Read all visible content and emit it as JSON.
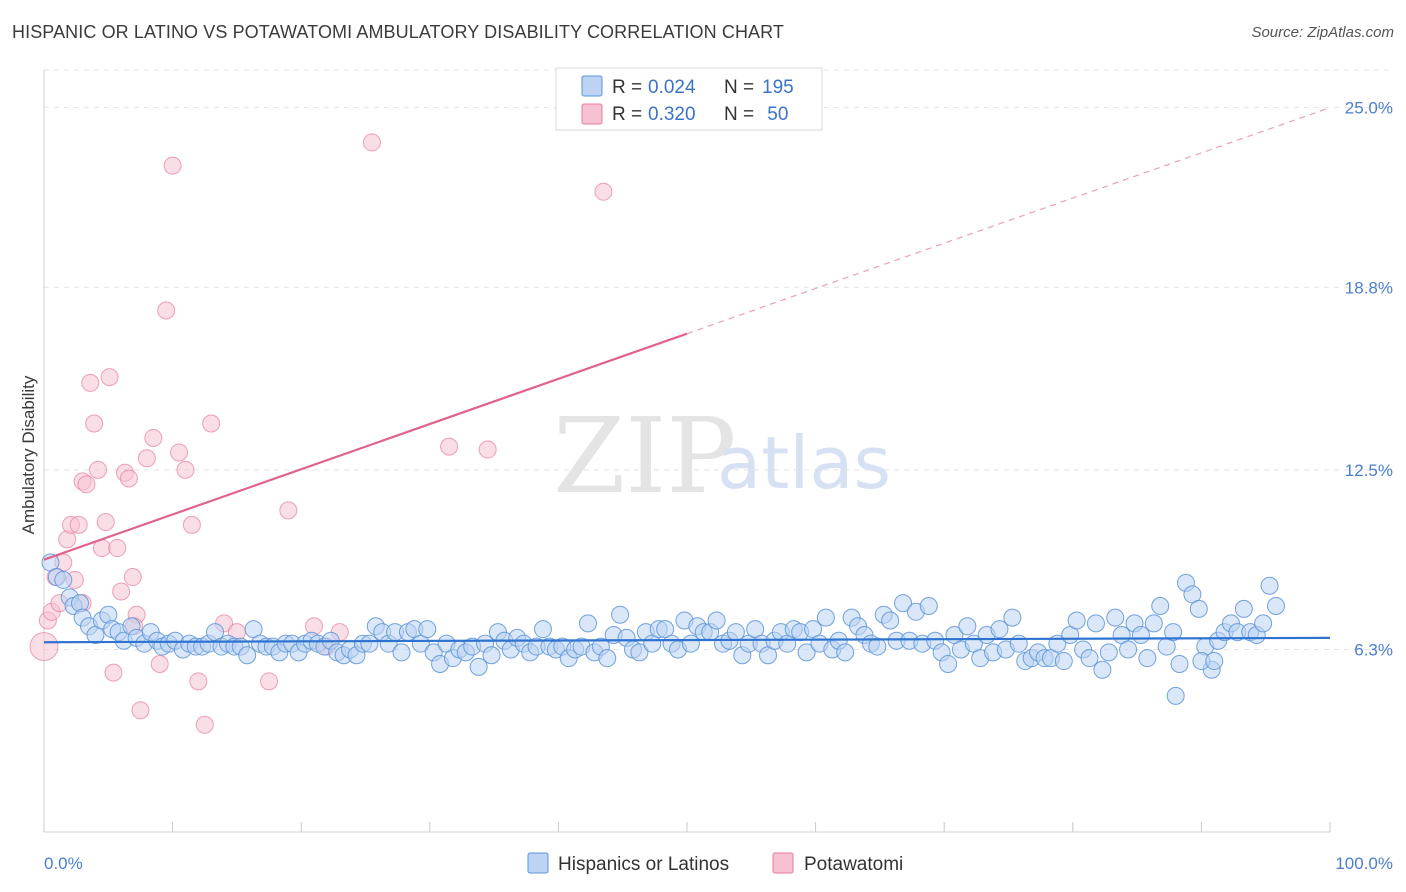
{
  "title": "HISPANIC OR LATINO VS POTAWATOMI AMBULATORY DISABILITY CORRELATION CHART",
  "source": "Source: ZipAtlas.com",
  "watermark": {
    "part1": "ZIP",
    "part2": "atlas"
  },
  "colors": {
    "blue": "#5b93db",
    "blue_fill": "#bcd3f3",
    "pink": "#e77ba0",
    "pink_fill": "#f6c2d2",
    "accent_text": "#3b73c8"
  },
  "legend": {
    "rows": [
      {
        "r_label": "R = ",
        "r_value": "0.024",
        "n_label": "N = ",
        "n_value": "195"
      },
      {
        "r_label": "R = ",
        "r_value": "0.320",
        "n_label": "N = ",
        "n_value": " 50"
      }
    ]
  },
  "bottom_legend": {
    "series1": "Hispanics or Latinos",
    "series2": "Potawatomi"
  },
  "chart_data": {
    "type": "scatter",
    "title": "HISPANIC OR LATINO VS POTAWATOMI AMBULATORY DISABILITY CORRELATION CHART",
    "xlabel": "",
    "ylabel": "Ambulatory Disability",
    "xlim": [
      0,
      100
    ],
    "ylim": [
      0,
      26.3
    ],
    "x_tick_labels": {
      "left": "0.0%",
      "right": "100.0%"
    },
    "y_ticks": [
      {
        "value": 6.3,
        "label": "6.3%"
      },
      {
        "value": 12.5,
        "label": "12.5%"
      },
      {
        "value": 18.8,
        "label": "18.8%"
      },
      {
        "value": 25.0,
        "label": "25.0%"
      }
    ],
    "series": [
      {
        "name": "Hispanics or Latinos",
        "R": 0.024,
        "N": 195,
        "trend": {
          "x0": 0,
          "y0": 6.55,
          "x1": 100,
          "y1": 6.7
        },
        "points": [
          [
            0.5,
            9.3
          ],
          [
            1,
            8.8
          ],
          [
            1.5,
            8.7
          ],
          [
            2,
            8.1
          ],
          [
            2.3,
            7.8
          ],
          [
            2.8,
            7.9
          ],
          [
            3,
            7.4
          ],
          [
            3.5,
            7.1
          ],
          [
            4,
            6.8
          ],
          [
            4.5,
            7.3
          ],
          [
            5,
            7.5
          ],
          [
            5.3,
            7.0
          ],
          [
            5.8,
            6.9
          ],
          [
            6.2,
            6.6
          ],
          [
            6.8,
            7.1
          ],
          [
            7.2,
            6.7
          ],
          [
            7.8,
            6.5
          ],
          [
            8.3,
            6.9
          ],
          [
            8.8,
            6.6
          ],
          [
            9.2,
            6.4
          ],
          [
            9.7,
            6.5
          ],
          [
            10.2,
            6.6
          ],
          [
            10.8,
            6.3
          ],
          [
            11.3,
            6.5
          ],
          [
            11.8,
            6.4
          ],
          [
            12.3,
            6.4
          ],
          [
            12.8,
            6.5
          ],
          [
            13.3,
            6.9
          ],
          [
            13.8,
            6.4
          ],
          [
            14.3,
            6.5
          ],
          [
            14.8,
            6.4
          ],
          [
            15.3,
            6.4
          ],
          [
            15.8,
            6.1
          ],
          [
            16.3,
            7.0
          ],
          [
            16.8,
            6.5
          ],
          [
            17.3,
            6.4
          ],
          [
            17.8,
            6.4
          ],
          [
            18.3,
            6.2
          ],
          [
            18.8,
            6.5
          ],
          [
            19.3,
            6.5
          ],
          [
            19.8,
            6.2
          ],
          [
            20.3,
            6.5
          ],
          [
            20.8,
            6.6
          ],
          [
            21.3,
            6.5
          ],
          [
            21.8,
            6.4
          ],
          [
            22.3,
            6.6
          ],
          [
            22.8,
            6.2
          ],
          [
            23.3,
            6.1
          ],
          [
            23.8,
            6.3
          ],
          [
            24.3,
            6.1
          ],
          [
            24.8,
            6.5
          ],
          [
            25.3,
            6.5
          ],
          [
            25.8,
            7.1
          ],
          [
            26.3,
            6.9
          ],
          [
            26.8,
            6.5
          ],
          [
            27.3,
            6.9
          ],
          [
            27.8,
            6.2
          ],
          [
            28.3,
            6.9
          ],
          [
            28.8,
            7.0
          ],
          [
            29.3,
            6.5
          ],
          [
            29.8,
            7.0
          ],
          [
            30.3,
            6.2
          ],
          [
            30.8,
            5.8
          ],
          [
            31.3,
            6.5
          ],
          [
            31.8,
            6.0
          ],
          [
            32.3,
            6.3
          ],
          [
            32.8,
            6.2
          ],
          [
            33.3,
            6.4
          ],
          [
            33.8,
            5.7
          ],
          [
            34.3,
            6.5
          ],
          [
            34.8,
            6.1
          ],
          [
            35.3,
            6.9
          ],
          [
            35.8,
            6.6
          ],
          [
            36.3,
            6.3
          ],
          [
            36.8,
            6.7
          ],
          [
            37.3,
            6.5
          ],
          [
            37.8,
            6.2
          ],
          [
            38.3,
            6.4
          ],
          [
            38.8,
            7.0
          ],
          [
            39.3,
            6.4
          ],
          [
            39.8,
            6.3
          ],
          [
            40.3,
            6.4
          ],
          [
            40.8,
            6.0
          ],
          [
            41.3,
            6.3
          ],
          [
            41.8,
            6.4
          ],
          [
            42.3,
            7.2
          ],
          [
            42.8,
            6.2
          ],
          [
            43.3,
            6.4
          ],
          [
            43.8,
            6.0
          ],
          [
            44.3,
            6.8
          ],
          [
            44.8,
            7.5
          ],
          [
            45.3,
            6.7
          ],
          [
            45.8,
            6.3
          ],
          [
            46.3,
            6.2
          ],
          [
            46.8,
            6.9
          ],
          [
            47.3,
            6.5
          ],
          [
            47.8,
            7.0
          ],
          [
            48.3,
            7.0
          ],
          [
            48.8,
            6.5
          ],
          [
            49.3,
            6.3
          ],
          [
            49.8,
            7.3
          ],
          [
            50.3,
            6.5
          ],
          [
            50.8,
            7.1
          ],
          [
            51.3,
            6.9
          ],
          [
            51.8,
            6.9
          ],
          [
            52.3,
            7.3
          ],
          [
            52.8,
            6.5
          ],
          [
            53.3,
            6.6
          ],
          [
            53.8,
            6.9
          ],
          [
            54.3,
            6.1
          ],
          [
            54.8,
            6.5
          ],
          [
            55.3,
            7.0
          ],
          [
            55.8,
            6.5
          ],
          [
            56.3,
            6.1
          ],
          [
            56.8,
            6.6
          ],
          [
            57.3,
            6.9
          ],
          [
            57.8,
            6.5
          ],
          [
            58.3,
            7.0
          ],
          [
            58.8,
            6.9
          ],
          [
            59.3,
            6.2
          ],
          [
            59.8,
            7.0
          ],
          [
            60.3,
            6.5
          ],
          [
            60.8,
            7.4
          ],
          [
            61.3,
            6.3
          ],
          [
            61.8,
            6.6
          ],
          [
            62.3,
            6.2
          ],
          [
            62.8,
            7.4
          ],
          [
            63.3,
            7.1
          ],
          [
            63.8,
            6.8
          ],
          [
            64.3,
            6.5
          ],
          [
            64.8,
            6.4
          ],
          [
            65.3,
            7.5
          ],
          [
            65.8,
            7.3
          ],
          [
            66.3,
            6.6
          ],
          [
            66.8,
            7.9
          ],
          [
            67.3,
            6.6
          ],
          [
            67.8,
            7.6
          ],
          [
            68.3,
            6.5
          ],
          [
            68.8,
            7.8
          ],
          [
            69.3,
            6.6
          ],
          [
            69.8,
            6.2
          ],
          [
            70.3,
            5.8
          ],
          [
            70.8,
            6.8
          ],
          [
            71.3,
            6.3
          ],
          [
            71.8,
            7.1
          ],
          [
            72.3,
            6.5
          ],
          [
            72.8,
            6.0
          ],
          [
            73.3,
            6.8
          ],
          [
            73.8,
            6.2
          ],
          [
            74.3,
            7.0
          ],
          [
            74.8,
            6.3
          ],
          [
            75.3,
            7.4
          ],
          [
            75.8,
            6.5
          ],
          [
            76.3,
            5.9
          ],
          [
            76.8,
            6.0
          ],
          [
            77.3,
            6.2
          ],
          [
            77.8,
            6.0
          ],
          [
            78.3,
            6.0
          ],
          [
            78.8,
            6.5
          ],
          [
            79.3,
            5.9
          ],
          [
            79.8,
            6.8
          ],
          [
            80.3,
            7.3
          ],
          [
            80.8,
            6.3
          ],
          [
            81.3,
            6.0
          ],
          [
            81.8,
            7.2
          ],
          [
            82.3,
            5.6
          ],
          [
            82.8,
            6.2
          ],
          [
            83.3,
            7.4
          ],
          [
            83.8,
            6.8
          ],
          [
            84.3,
            6.3
          ],
          [
            84.8,
            7.2
          ],
          [
            85.3,
            6.8
          ],
          [
            85.8,
            6.0
          ],
          [
            86.3,
            7.2
          ],
          [
            86.8,
            7.8
          ],
          [
            87.3,
            6.4
          ],
          [
            87.8,
            6.9
          ],
          [
            88.3,
            5.8
          ],
          [
            88.8,
            8.6
          ],
          [
            89.3,
            8.2
          ],
          [
            89.8,
            7.7
          ],
          [
            90.3,
            6.4
          ],
          [
            90.8,
            5.6
          ],
          [
            91.3,
            6.6
          ],
          [
            91.8,
            6.9
          ],
          [
            92.3,
            7.2
          ],
          [
            92.8,
            6.9
          ],
          [
            93.3,
            7.7
          ],
          [
            93.8,
            6.9
          ],
          [
            94.3,
            6.8
          ],
          [
            94.8,
            7.2
          ],
          [
            95.3,
            8.5
          ],
          [
            95.8,
            7.8
          ],
          [
            88,
            4.7
          ],
          [
            90,
            5.9
          ],
          [
            91,
            5.9
          ]
        ]
      },
      {
        "name": "Potawatomi",
        "R": 0.32,
        "N": 50,
        "trend": {
          "x0": 0,
          "y0": 9.4,
          "x1": 50,
          "y1": 17.2
        },
        "trend_dashed_to": {
          "x": 100,
          "y": 25.0
        },
        "points": [
          [
            0,
            6.4
          ],
          [
            0.3,
            7.3
          ],
          [
            0.6,
            7.6
          ],
          [
            0.9,
            8.8
          ],
          [
            1.2,
            7.9
          ],
          [
            1.5,
            9.3
          ],
          [
            1.8,
            10.1
          ],
          [
            2.1,
            10.6
          ],
          [
            2.4,
            8.7
          ],
          [
            2.7,
            10.6
          ],
          [
            3.0,
            12.1
          ],
          [
            3.3,
            12.0
          ],
          [
            3.6,
            15.5
          ],
          [
            3.9,
            14.1
          ],
          [
            4.2,
            12.5
          ],
          [
            4.5,
            9.8
          ],
          [
            4.8,
            10.7
          ],
          [
            5.1,
            15.7
          ],
          [
            5.4,
            5.5
          ],
          [
            5.7,
            9.8
          ],
          [
            6.0,
            8.3
          ],
          [
            6.3,
            12.4
          ],
          [
            6.6,
            12.2
          ],
          [
            6.9,
            8.8
          ],
          [
            7.2,
            7.5
          ],
          [
            7.5,
            4.2
          ],
          [
            8.0,
            12.9
          ],
          [
            8.5,
            13.6
          ],
          [
            9.0,
            5.8
          ],
          [
            9.5,
            18.0
          ],
          [
            10.0,
            23.0
          ],
          [
            10.5,
            13.1
          ],
          [
            11.0,
            12.5
          ],
          [
            11.5,
            10.6
          ],
          [
            12.0,
            5.2
          ],
          [
            12.5,
            3.7
          ],
          [
            13.0,
            14.1
          ],
          [
            14.0,
            7.2
          ],
          [
            15.0,
            6.9
          ],
          [
            17.5,
            5.2
          ],
          [
            19.0,
            11.1
          ],
          [
            21.0,
            7.1
          ],
          [
            22.0,
            6.4
          ],
          [
            23.0,
            6.9
          ],
          [
            25.5,
            23.8
          ],
          [
            31.5,
            13.3
          ],
          [
            34.5,
            13.2
          ],
          [
            43.5,
            22.1
          ],
          [
            7.0,
            7.1
          ],
          [
            3.0,
            7.9
          ]
        ]
      }
    ]
  }
}
